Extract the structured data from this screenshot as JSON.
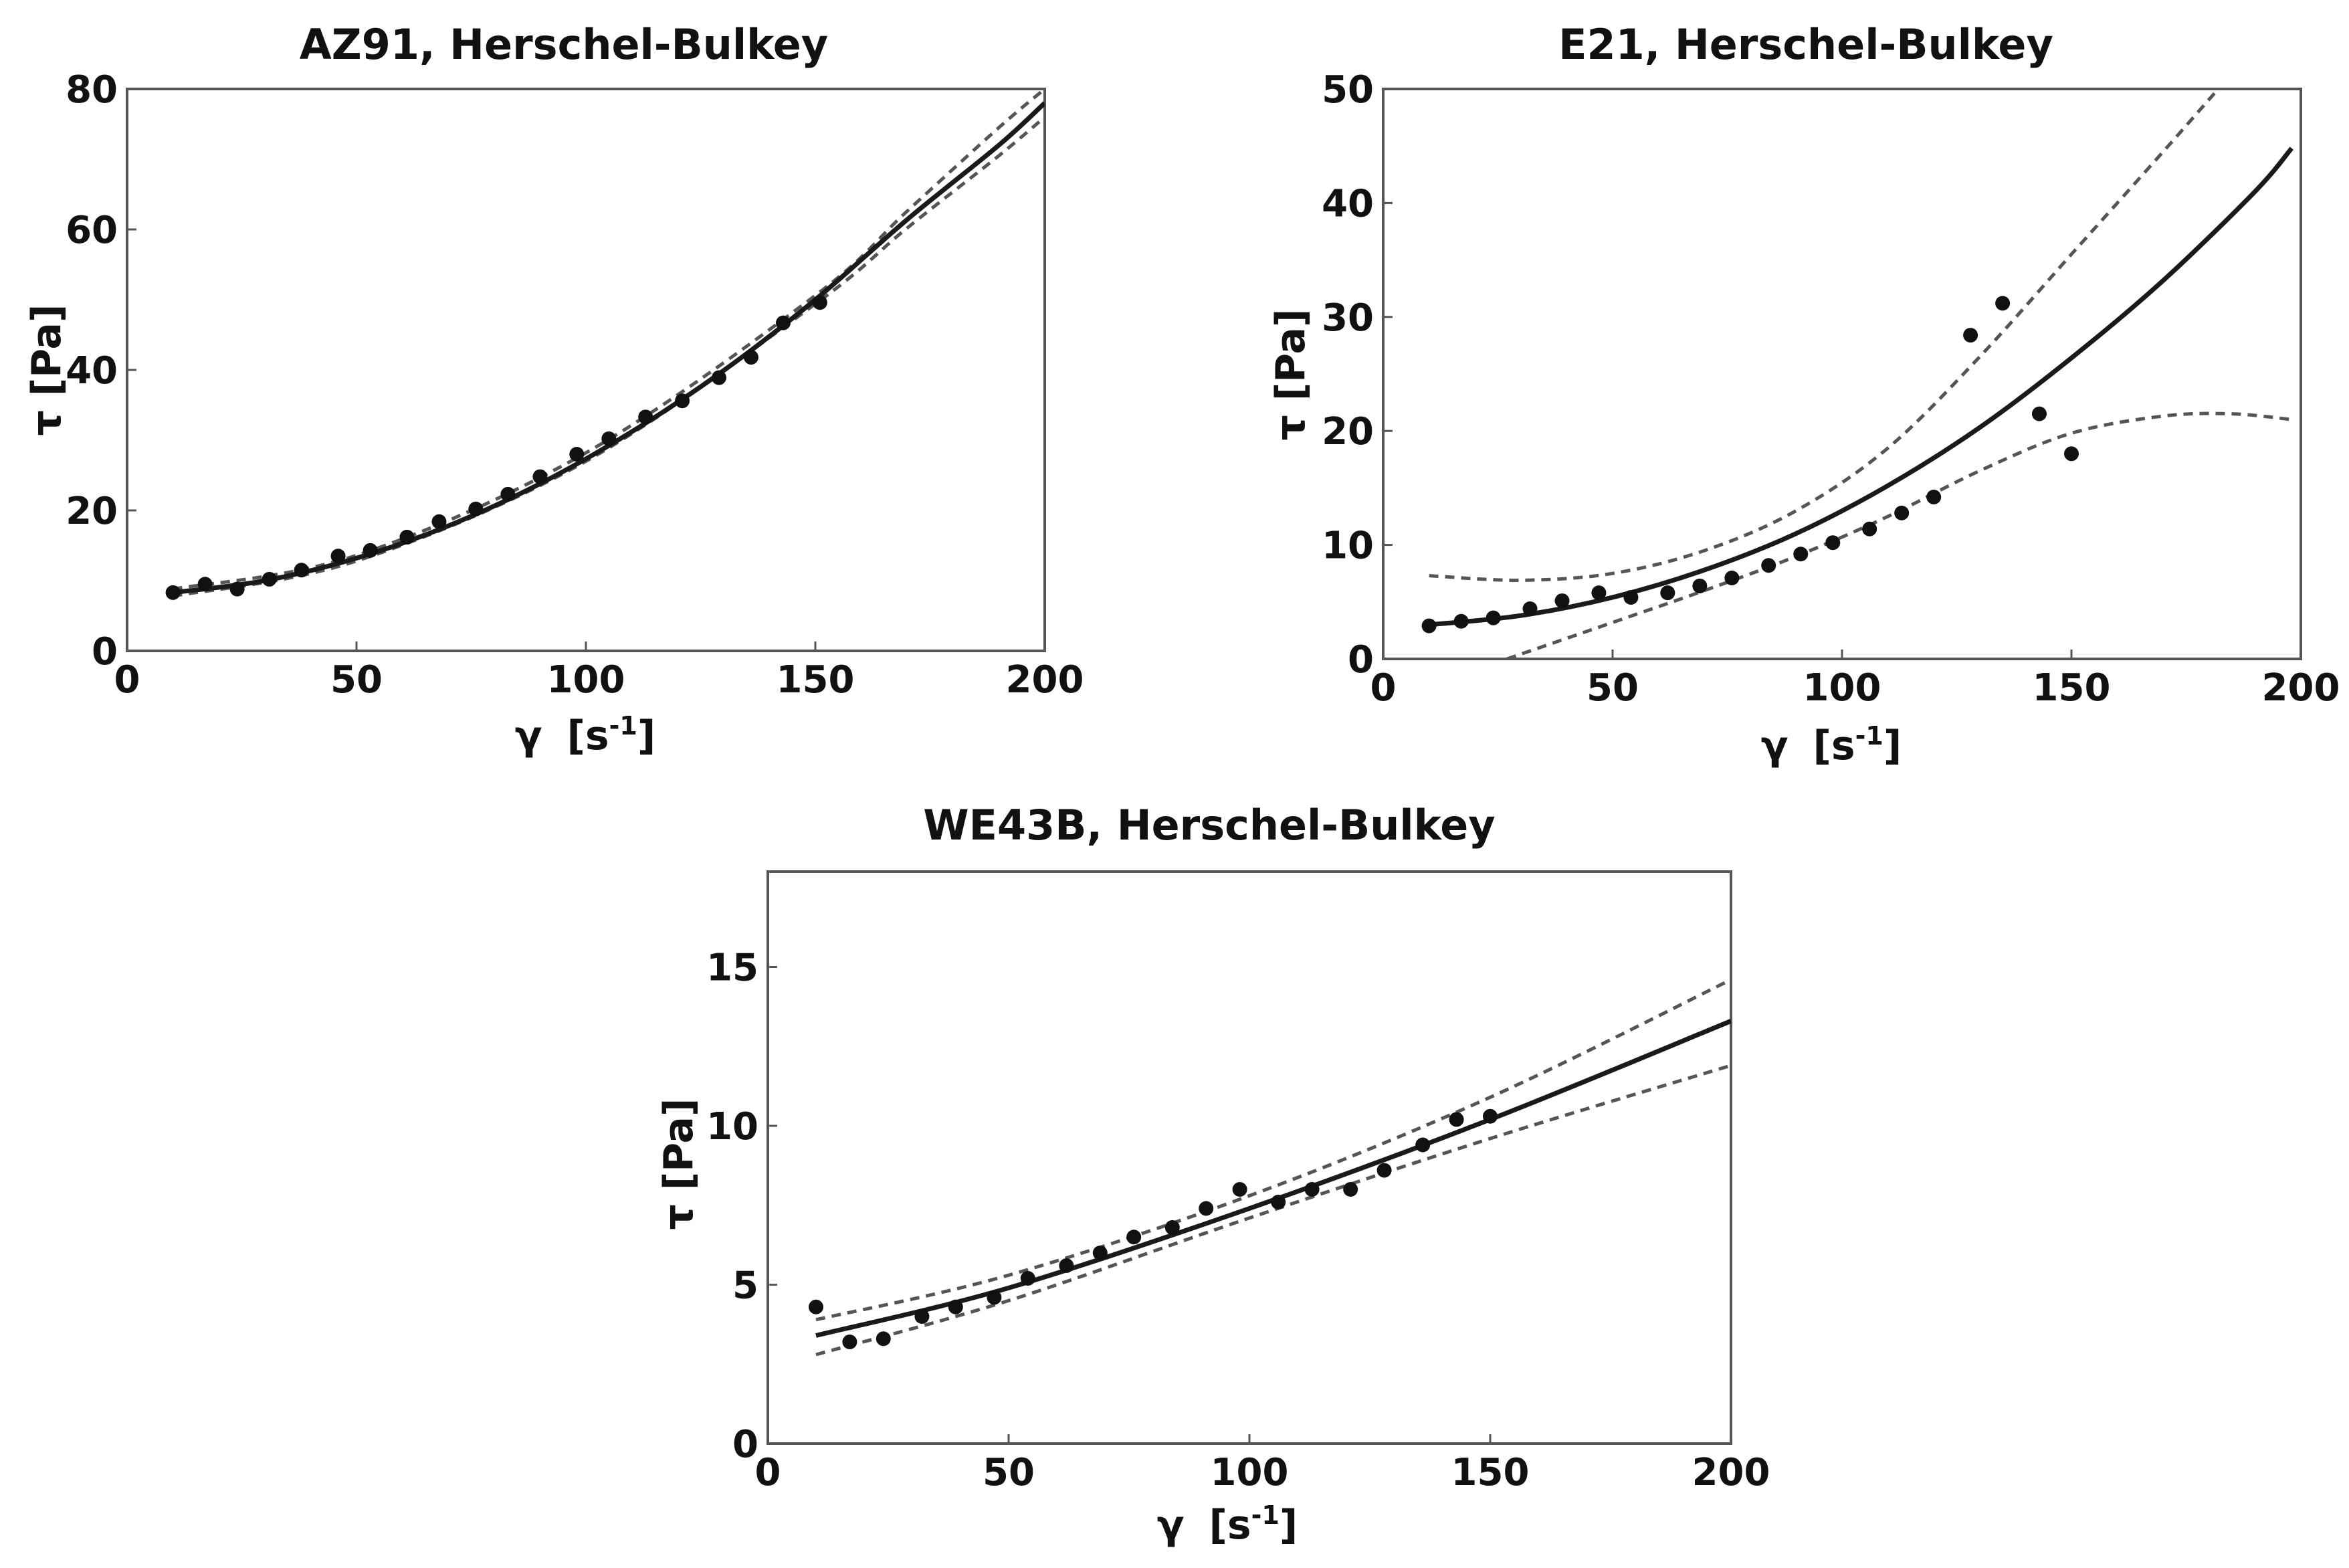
{
  "chart_data": [
    {
      "type": "scatter",
      "title": "AZ91, Herschel-Bulkey",
      "xlabel_symbol": "γ",
      "xlabel_unit": "[s",
      "xlabel_exp": "-1",
      "xlabel_close": "]",
      "ylabel": "τ [Pa]",
      "xlim": [
        0,
        200
      ],
      "ylim": [
        0,
        80
      ],
      "xticks": [
        0,
        50,
        100,
        150,
        200
      ],
      "yticks": [
        0,
        20,
        40,
        60,
        80
      ],
      "points": {
        "x": [
          10,
          17,
          24,
          31,
          38,
          46,
          53,
          61,
          68,
          76,
          83,
          90,
          98,
          105,
          113,
          121,
          129,
          136,
          143,
          151
        ],
        "y": [
          8.3,
          9.5,
          8.8,
          10.2,
          11.5,
          13.5,
          14.3,
          16.2,
          18.4,
          20.2,
          22.3,
          24.8,
          28.0,
          30.2,
          33.3,
          35.6,
          38.9,
          41.8,
          46.7,
          49.6
        ]
      },
      "fit": {
        "x": [
          10,
          30,
          50,
          70,
          90,
          110,
          130,
          150,
          170,
          190,
          200
        ],
        "y": [
          8.3,
          10.0,
          13.2,
          17.8,
          23.8,
          31.2,
          39.9,
          50.0,
          61.4,
          72.0,
          78.0
        ]
      },
      "ci_upper": {
        "x": [
          10,
          50,
          100,
          150,
          170,
          190,
          200
        ],
        "y": [
          8.8,
          13.6,
          28.2,
          50.6,
          62.6,
          74.5,
          80.0
        ]
      },
      "ci_lower": {
        "x": [
          10,
          50,
          100,
          150,
          170,
          190,
          200
        ],
        "y": [
          7.8,
          12.8,
          27.0,
          49.4,
          60.2,
          70.5,
          76.0
        ]
      }
    },
    {
      "type": "scatter",
      "title": "E21, Herschel-Bulkey",
      "xlabel_symbol": "γ",
      "xlabel_unit": "[s",
      "xlabel_exp": "-1",
      "xlabel_close": "]",
      "ylabel": "τ [Pa]",
      "xlim": [
        0,
        200
      ],
      "ylim": [
        0,
        50
      ],
      "xticks": [
        0,
        50,
        100,
        150,
        200
      ],
      "yticks": [
        0,
        10,
        20,
        30,
        40,
        50
      ],
      "points": {
        "x": [
          10,
          17,
          24,
          32,
          39,
          47,
          54,
          62,
          69,
          76,
          84,
          91,
          98,
          106,
          113,
          120,
          128,
          135,
          143,
          150
        ],
        "y": [
          2.9,
          3.3,
          3.6,
          4.4,
          5.1,
          5.8,
          5.4,
          5.8,
          6.4,
          7.1,
          8.2,
          9.2,
          10.2,
          11.4,
          12.8,
          14.2,
          28.4,
          31.2,
          21.5,
          18.0
        ]
      },
      "fit": {
        "x": [
          10,
          30,
          50,
          70,
          90,
          110,
          130,
          150,
          170,
          190,
          198
        ],
        "y": [
          3.0,
          3.8,
          5.4,
          7.8,
          11.0,
          15.2,
          20.3,
          26.4,
          33.2,
          41.0,
          44.8
        ]
      },
      "ci_upper": {
        "x": [
          10,
          30,
          50,
          70,
          90,
          110,
          130,
          150,
          170,
          182
        ],
        "y": [
          7.3,
          6.9,
          7.5,
          9.5,
          13.0,
          18.5,
          26.5,
          35.5,
          44.5,
          50.0
        ]
      },
      "ci_lower": {
        "x": [
          27,
          50,
          70,
          90,
          110,
          130,
          150,
          170,
          185,
          198
        ],
        "y": [
          0.0,
          3.2,
          6.0,
          9.0,
          12.5,
          16.5,
          19.8,
          21.3,
          21.5,
          21.0
        ]
      }
    },
    {
      "type": "scatter",
      "title": "WE43B, Herschel-Bulkey",
      "xlabel_symbol": "γ",
      "xlabel_unit": "[s",
      "xlabel_exp": "-1",
      "xlabel_close": "]",
      "ylabel": "τ [Pa]",
      "xlim": [
        0,
        200
      ],
      "ylim": [
        0,
        18
      ],
      "xticks": [
        0,
        50,
        100,
        150,
        200
      ],
      "yticks": [
        0,
        5,
        10,
        15
      ],
      "points": {
        "x": [
          10,
          17,
          24,
          32,
          39,
          47,
          54,
          62,
          69,
          76,
          84,
          91,
          98,
          106,
          113,
          121,
          128,
          136,
          143,
          150
        ],
        "y": [
          4.3,
          3.2,
          3.3,
          4.0,
          4.3,
          4.6,
          5.2,
          5.6,
          6.0,
          6.5,
          6.8,
          7.4,
          8.0,
          7.6,
          8.0,
          8.0,
          8.6,
          9.4,
          10.2,
          10.3
        ]
      },
      "fit": {
        "x": [
          10,
          50,
          100,
          150,
          200
        ],
        "y": [
          3.4,
          4.9,
          7.4,
          10.2,
          13.3
        ]
      },
      "ci_upper": {
        "x": [
          10,
          50,
          100,
          150,
          200
        ],
        "y": [
          3.9,
          5.3,
          7.8,
          10.9,
          14.6
        ]
      },
      "ci_lower": {
        "x": [
          10,
          50,
          100,
          150,
          200
        ],
        "y": [
          2.8,
          4.5,
          7.1,
          9.6,
          11.9
        ]
      }
    }
  ]
}
